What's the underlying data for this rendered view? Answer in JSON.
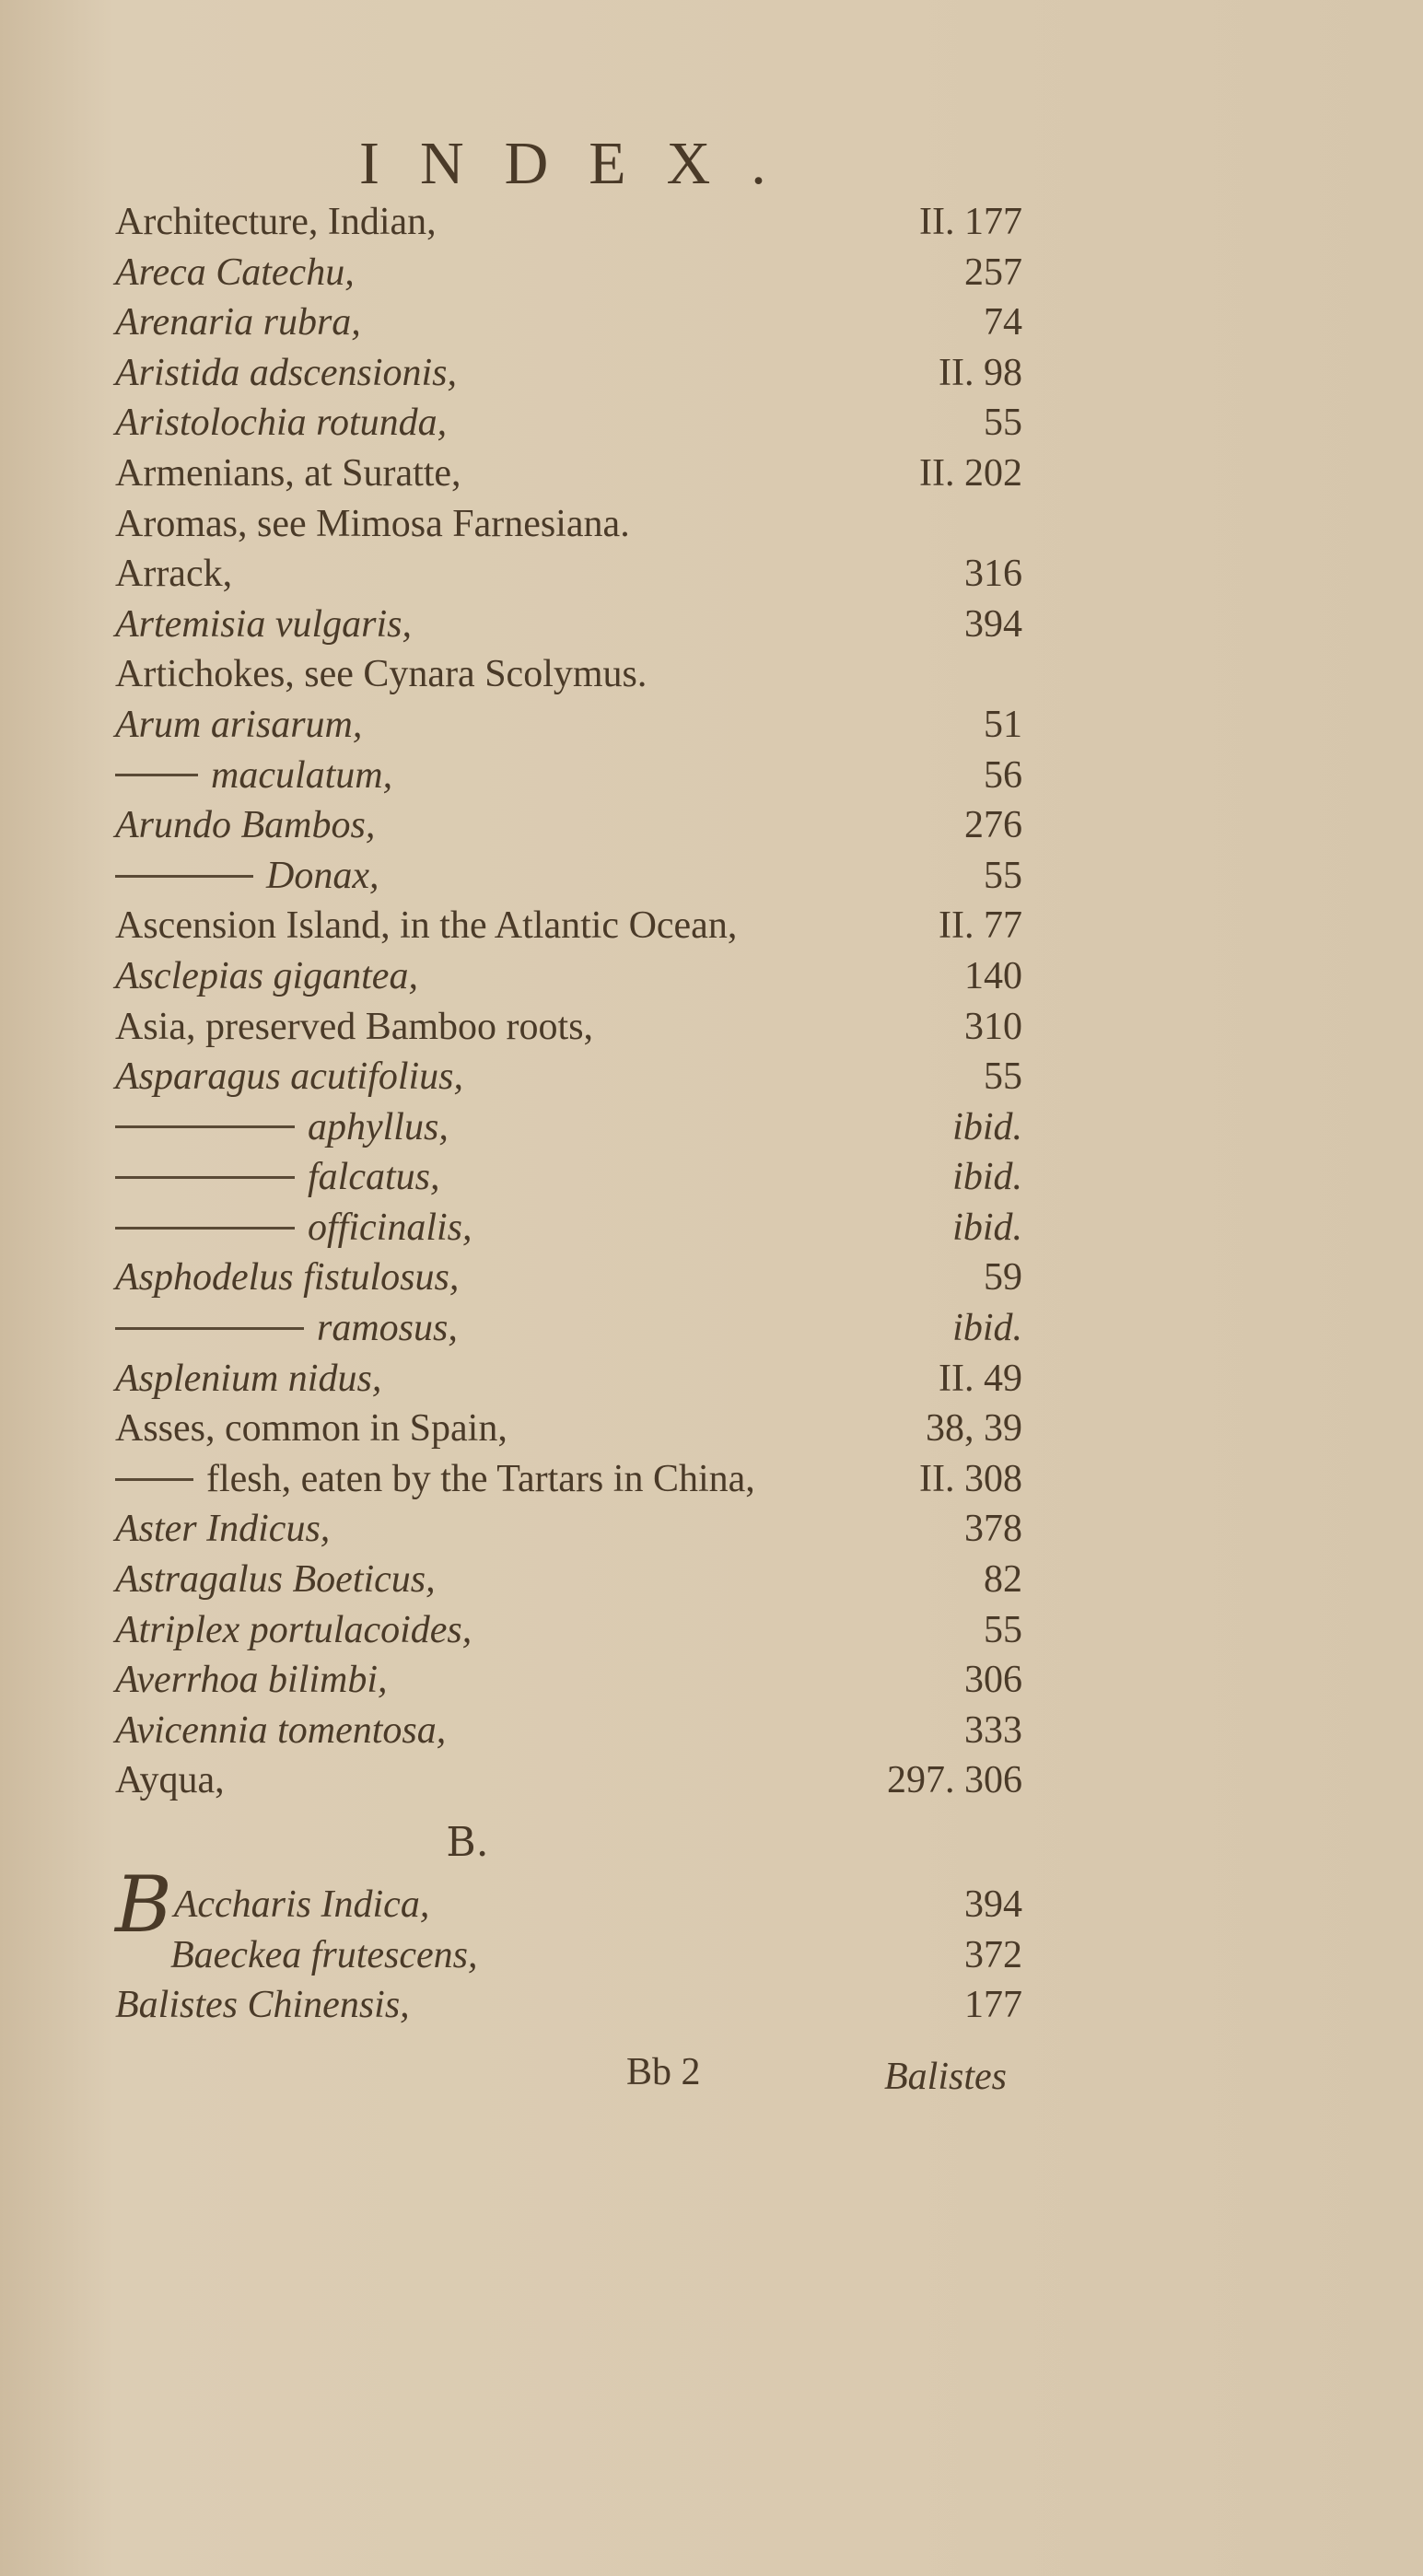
{
  "title": "INDEX.",
  "entries": [
    {
      "label": "Architecture, Indian,",
      "num": "II. 177",
      "italic": false
    },
    {
      "label": "Areca Catechu,",
      "num": "257",
      "italic": true
    },
    {
      "label": "Arenaria rubra,",
      "num": "74",
      "italic": true
    },
    {
      "label": "Aristida adscensionis,",
      "num": "II. 98",
      "italic": true
    },
    {
      "label": "Aristolochia rotunda,",
      "num": "55",
      "italic": true
    },
    {
      "label": "Armenians, at Suratte,",
      "num": "II. 202",
      "italic": false
    },
    {
      "label": "Aromas, see Mimosa Farnesiana.",
      "num": "",
      "italic": false
    },
    {
      "label": "Arrack,",
      "num": "316",
      "italic": false
    },
    {
      "label": "Artemisia vulgaris,",
      "num": "394",
      "italic": true
    },
    {
      "label": "Artichokes, see Cynara Scolymus.",
      "num": "",
      "italic": false
    },
    {
      "label": "Arum arisarum,",
      "num": "51",
      "italic": true
    },
    {
      "label": "maculatum,",
      "num": "56",
      "italic": true,
      "dash": 90
    },
    {
      "label": "Arundo Bambos,",
      "num": "276",
      "italic": true
    },
    {
      "label": "Donax,",
      "num": "55",
      "italic": true,
      "dash": 150
    },
    {
      "label": "Ascension Island, in the Atlantic Ocean,",
      "num": "II. 77",
      "italic": false
    },
    {
      "label": "Asclepias gigantea,",
      "num": "140",
      "italic": true
    },
    {
      "label": "Asia, preserved Bamboo roots,",
      "num": "310",
      "italic": false
    },
    {
      "label": "Asparagus acutifolius,",
      "num": "55",
      "italic": true
    },
    {
      "label": "aphyllus,",
      "num": "ibid.",
      "italic": true,
      "dash": 195,
      "numItalic": true
    },
    {
      "label": "falcatus,",
      "num": "ibid.",
      "italic": true,
      "dash": 195,
      "numItalic": true
    },
    {
      "label": "officinalis,",
      "num": "ibid.",
      "italic": true,
      "dash": 195,
      "numItalic": true
    },
    {
      "label": "Asphodelus fistulosus,",
      "num": "59",
      "italic": true
    },
    {
      "label": "ramosus,",
      "num": "ibid.",
      "italic": true,
      "dash": 205,
      "numItalic": true
    },
    {
      "label": "Asplenium nidus,",
      "num": "II. 49",
      "italic": true
    },
    {
      "label": "Asses, common in Spain,",
      "num": "38, 39",
      "italic": false
    },
    {
      "label": "flesh, eaten by the Tartars in China,",
      "num": "II. 308",
      "italic": false,
      "dash": 85
    },
    {
      "label": "Aster Indicus,",
      "num": "378",
      "italic": true
    },
    {
      "label": "Astragalus Boeticus,",
      "num": "82",
      "italic": true
    },
    {
      "label": "Atriplex portulacoides,",
      "num": "55",
      "italic": true
    },
    {
      "label": "Averrhoa bilimbi,",
      "num": "306",
      "italic": true
    },
    {
      "label": "Avicennia tomentosa,",
      "num": "333",
      "italic": true
    },
    {
      "label": "Ayqua,",
      "num": "297. 306",
      "italic": false
    }
  ],
  "section_letter": "B.",
  "b_entries": [
    {
      "drop": "B",
      "label": "Accharis Indica,",
      "num": "394"
    },
    {
      "label": "Baeckea frutescens,",
      "num": "372"
    },
    {
      "label": "Balistes Chinensis,",
      "num": "177"
    }
  ],
  "signature": "Bb 2",
  "catchword": "Balistes"
}
